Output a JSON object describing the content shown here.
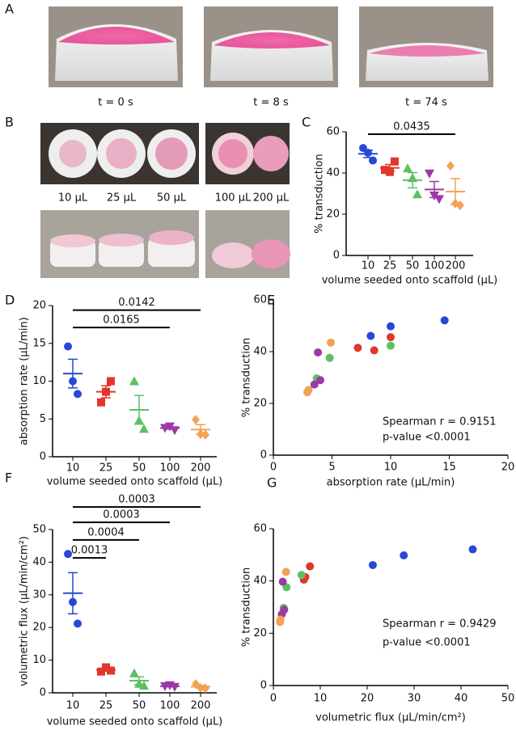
{
  "panels": {
    "A": {
      "label": "A",
      "captions": [
        "t = 0 s",
        "t = 8 s",
        "t = 74 s"
      ]
    },
    "B": {
      "label": "B",
      "captions": [
        "10 µL",
        "25 µL",
        "50 µL",
        "100 µL",
        "200 µL"
      ]
    }
  },
  "chart_data": [
    {
      "panel": "C",
      "type": "dotplot",
      "ylabel": "% transduction",
      "xlabel": "volume seeded onto scaffold (µL)",
      "categories": [
        "10",
        "25",
        "50",
        "100",
        "200"
      ],
      "colors": [
        "#2748d6",
        "#e2352c",
        "#5cc160",
        "#9b3aa6",
        "#f2a155"
      ],
      "markers": [
        "circle",
        "square",
        "triangle",
        "triangle-down",
        "diamond"
      ],
      "points": [
        [
          52.1,
          49.8,
          46.1
        ],
        [
          41.5,
          40.5,
          45.6
        ],
        [
          42.3,
          37.6,
          29.7
        ],
        [
          39.7,
          29,
          27.3
        ],
        [
          43.5,
          25.2,
          24.3
        ]
      ],
      "means": [
        49.3,
        42.5,
        36.5,
        32,
        31
      ],
      "errors": [
        1.8,
        1.6,
        3.7,
        3.9,
        6.3
      ],
      "ylim": [
        0,
        60
      ],
      "yticks": [
        0,
        20,
        40,
        60
      ],
      "brackets": [
        {
          "between": [
            0,
            4
          ],
          "y": 58.8,
          "text": "0.0435"
        }
      ]
    },
    {
      "panel": "D",
      "type": "dotplot",
      "ylabel": "absorption rate (µL/min)",
      "xlabel": "volume seeded onto scaffold (µL)",
      "categories": [
        "10",
        "25",
        "50",
        "100",
        "200"
      ],
      "colors": [
        "#2748d6",
        "#e2352c",
        "#5cc160",
        "#9b3aa6",
        "#f2a155"
      ],
      "markers": [
        "circle",
        "square",
        "triangle",
        "triangle-down",
        "diamond"
      ],
      "points": [
        [
          14.6,
          10,
          8.3
        ],
        [
          7.2,
          8.6,
          10
        ],
        [
          10,
          4.8,
          3.7
        ],
        [
          3.8,
          4,
          3.5
        ],
        [
          4.9,
          3,
          2.9
        ]
      ],
      "means": [
        11,
        8.6,
        6.2,
        3.8,
        3.6
      ],
      "errors": [
        1.9,
        0.8,
        1.9,
        0.15,
        0.65
      ],
      "ylim": [
        0,
        20
      ],
      "yticks": [
        0,
        5,
        10,
        15,
        20
      ],
      "brackets": [
        {
          "between": [
            0,
            4
          ],
          "y": 19.4,
          "text": "0.0142"
        },
        {
          "between": [
            0,
            3
          ],
          "y": 17.1,
          "text": "0.0165"
        }
      ]
    },
    {
      "panel": "E",
      "type": "scatter",
      "xlabel": "absorption rate (µL/min)",
      "ylabel": "% transduction",
      "series": [
        {
          "color": "#2748d6",
          "x": [
            14.6,
            10,
            8.3
          ],
          "y": [
            52.1,
            49.8,
            46.1
          ]
        },
        {
          "color": "#e2352c",
          "x": [
            7.2,
            8.6,
            10
          ],
          "y": [
            41.5,
            40.5,
            45.6
          ]
        },
        {
          "color": "#5cc160",
          "x": [
            10,
            4.8,
            3.7
          ],
          "y": [
            42.3,
            37.6,
            29.7
          ]
        },
        {
          "color": "#9b3aa6",
          "x": [
            3.8,
            4,
            3.5
          ],
          "y": [
            39.7,
            29,
            27.3
          ]
        },
        {
          "color": "#f2a155",
          "x": [
            4.9,
            3,
            2.9
          ],
          "y": [
            43.5,
            25.2,
            24.3
          ]
        }
      ],
      "xlim": [
        0,
        20
      ],
      "xticks": [
        0,
        5,
        10,
        15,
        20
      ],
      "ylim": [
        0,
        60
      ],
      "yticks": [
        0,
        20,
        40,
        60
      ],
      "annotations": [
        "Spearman r = 0.9151",
        "p-value <0.0001"
      ]
    },
    {
      "panel": "F",
      "type": "dotplot",
      "ylabel": "volumetric flux (µL/min/cm²)",
      "xlabel": "volume seeded onto scaffold (µL)",
      "categories": [
        "10",
        "25",
        "50",
        "100",
        "200"
      ],
      "colors": [
        "#2748d6",
        "#e2352c",
        "#5cc160",
        "#9b3aa6",
        "#f2a155"
      ],
      "markers": [
        "circle",
        "square",
        "triangle",
        "triangle-down",
        "diamond"
      ],
      "points": [
        [
          42.5,
          27.8,
          21.2
        ],
        [
          6.5,
          7.8,
          6.8
        ],
        [
          6,
          2.8,
          2.2
        ],
        [
          2,
          2.3,
          1.8
        ],
        [
          2.7,
          1.5,
          1.4
        ]
      ],
      "means": [
        30.5,
        7,
        3.7,
        2,
        1.9
      ],
      "errors": [
        6.3,
        0.4,
        1.2,
        0.15,
        0.4
      ],
      "ylim": [
        0,
        50
      ],
      "yticks": [
        0,
        10,
        20,
        30,
        40,
        50
      ],
      "brackets": [
        {
          "between": [
            0,
            4
          ],
          "y": 56.9,
          "text": "0.0003"
        },
        {
          "between": [
            0,
            3
          ],
          "y": 52.2,
          "text": "0.0003"
        },
        {
          "between": [
            0,
            2
          ],
          "y": 46.8,
          "text": "0.0004"
        },
        {
          "between": [
            0,
            1
          ],
          "y": 41.3,
          "text": "0.0013"
        }
      ]
    },
    {
      "panel": "G",
      "type": "scatter",
      "xlabel": "volumetric flux (µL/min/cm²)",
      "ylabel": "% transduction",
      "series": [
        {
          "color": "#2748d6",
          "x": [
            42.5,
            27.8,
            21.2
          ],
          "y": [
            52.1,
            49.8,
            46.1
          ]
        },
        {
          "color": "#e2352c",
          "x": [
            7.8,
            6.5,
            6.8
          ],
          "y": [
            45.6,
            40.5,
            41.5
          ]
        },
        {
          "color": "#5cc160",
          "x": [
            6,
            2.8,
            2.2
          ],
          "y": [
            42.3,
            37.6,
            29.7
          ]
        },
        {
          "color": "#9b3aa6",
          "x": [
            2,
            2.3,
            1.8
          ],
          "y": [
            39.7,
            29,
            27.3
          ]
        },
        {
          "color": "#f2a155",
          "x": [
            2.7,
            1.5,
            1.4
          ],
          "y": [
            43.5,
            25.2,
            24.3
          ]
        }
      ],
      "xlim": [
        0,
        50
      ],
      "xticks": [
        0,
        10,
        20,
        30,
        40,
        50
      ],
      "ylim": [
        0,
        60
      ],
      "yticks": [
        0,
        20,
        40,
        60
      ],
      "annotations": [
        "Spearman r = 0.9429",
        "p-value <0.0001"
      ]
    }
  ]
}
